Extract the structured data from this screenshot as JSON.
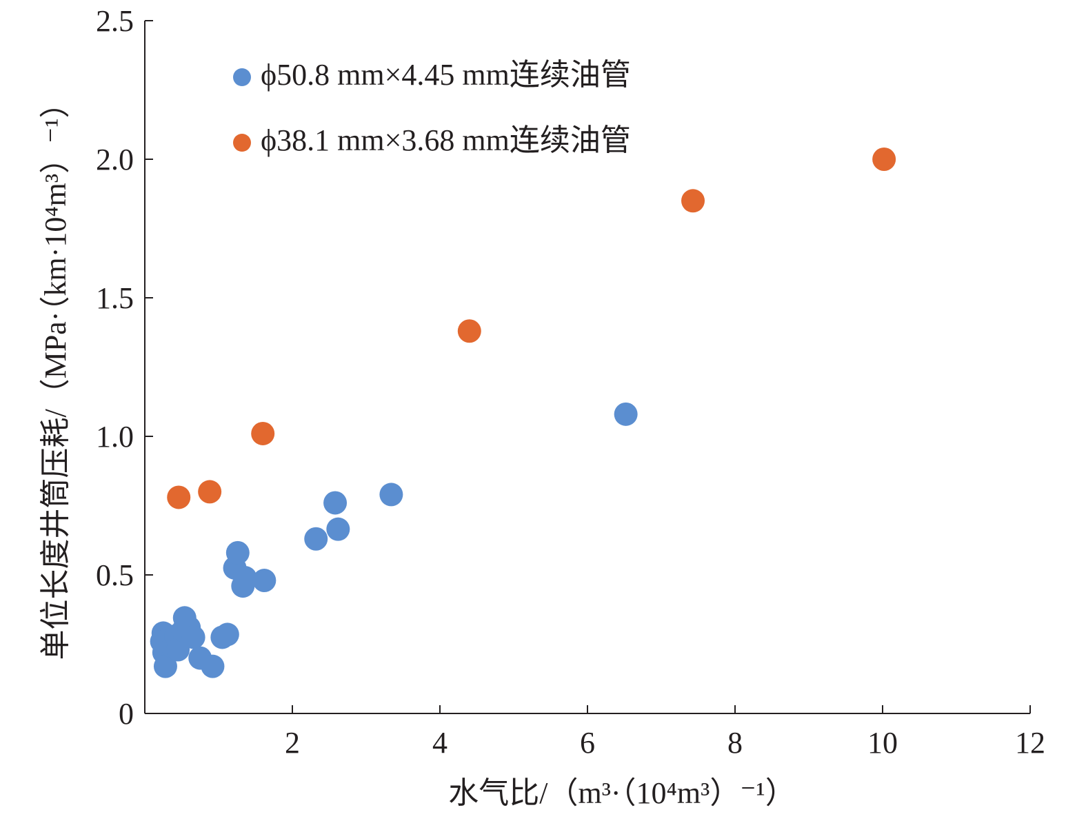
{
  "chart_data": {
    "type": "scatter",
    "title": "",
    "xlabel": "水气比/（m³·（10⁴m³）⁻¹）",
    "ylabel": "单位长度井筒压耗/（MPa·（km·10⁴m³）⁻¹）",
    "xlim": [
      0,
      12
    ],
    "ylim": [
      0,
      2.5
    ],
    "x_ticks": [
      2,
      4,
      6,
      8,
      10,
      12
    ],
    "x_tick_labels": [
      "2",
      "4",
      "6",
      "8",
      "10",
      "12"
    ],
    "y_ticks": [
      0,
      0.5,
      1.0,
      1.5,
      2.0,
      2.5
    ],
    "y_tick_labels": [
      "0",
      "0.5",
      "1.0",
      "1.5",
      "2.0",
      "2.5"
    ],
    "grid": false,
    "legend_position": "top-left",
    "series": [
      {
        "name": "ϕ50.8 mm×4.45 mm连续油管",
        "color": "#5b8ed0",
        "points": [
          [
            0.25,
            0.29
          ],
          [
            0.23,
            0.26
          ],
          [
            0.26,
            0.22
          ],
          [
            0.28,
            0.17
          ],
          [
            0.32,
            0.27
          ],
          [
            0.38,
            0.24
          ],
          [
            0.42,
            0.28
          ],
          [
            0.45,
            0.23
          ],
          [
            0.52,
            0.3
          ],
          [
            0.54,
            0.345
          ],
          [
            0.6,
            0.31
          ],
          [
            0.66,
            0.275
          ],
          [
            0.75,
            0.2
          ],
          [
            0.92,
            0.17
          ],
          [
            1.05,
            0.275
          ],
          [
            1.12,
            0.285
          ],
          [
            1.22,
            0.525
          ],
          [
            1.26,
            0.58
          ],
          [
            1.33,
            0.46
          ],
          [
            1.36,
            0.49
          ],
          [
            1.62,
            0.48
          ],
          [
            2.32,
            0.63
          ],
          [
            2.58,
            0.76
          ],
          [
            2.62,
            0.665
          ],
          [
            3.34,
            0.79
          ],
          [
            6.52,
            1.08
          ]
        ]
      },
      {
        "name": "ϕ38.1 mm×3.68 mm连续油管",
        "color": "#e2682f",
        "points": [
          [
            0.46,
            0.78
          ],
          [
            0.88,
            0.8
          ],
          [
            1.6,
            1.01
          ],
          [
            4.4,
            1.38
          ],
          [
            7.43,
            1.85
          ],
          [
            10.02,
            2.0
          ]
        ]
      }
    ]
  }
}
